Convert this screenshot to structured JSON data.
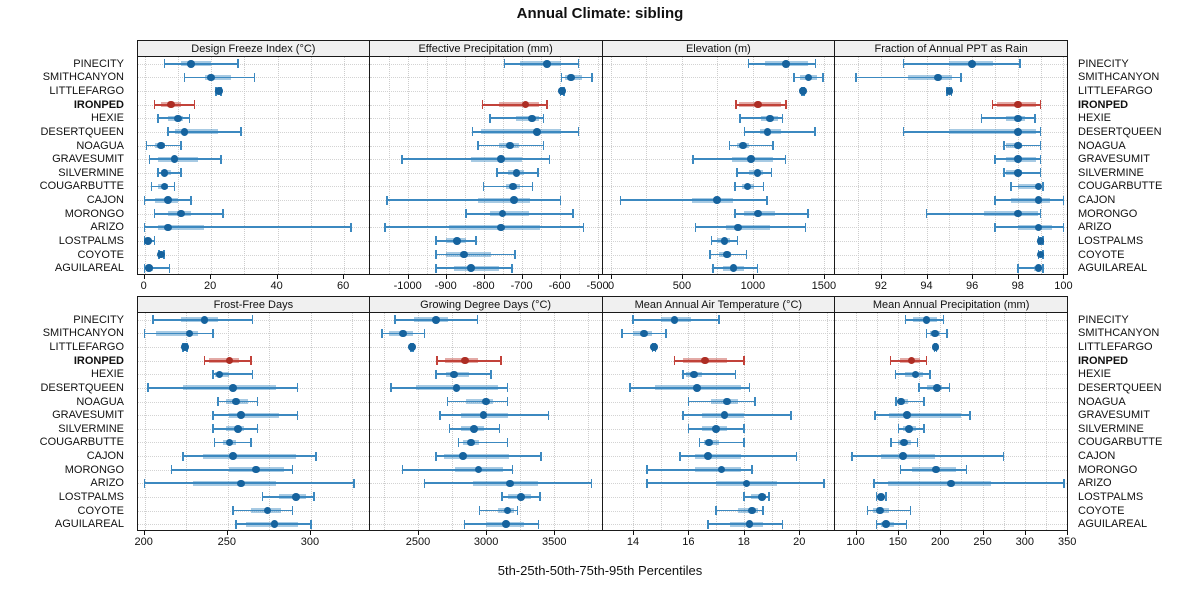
{
  "title": "Annual Climate: sibling",
  "caption": "5th-25th-50th-75th-95th Percentiles",
  "chart_data": {
    "type": "dotplot-percentile-whiskers",
    "layout": {
      "rows": 2,
      "cols": 4,
      "legend": "none",
      "grid": "dotted"
    },
    "percentiles": [
      5,
      25,
      50,
      75,
      95
    ],
    "highlight_site": "IRONPED",
    "colors": {
      "normal": "#3c89c0",
      "normal_dot": "#16639e",
      "highlight": "#c2423a",
      "highlight_dot": "#ad2d24",
      "strip_bg": "#f0f0f0",
      "grid": "#cccccc"
    },
    "sites": [
      "PINECITY",
      "SMITHCANYON",
      "LITTLEFARGO",
      "IRONPED",
      "HEXIE",
      "DESERTQUEEN",
      "NOAGUA",
      "GRAVESUMIT",
      "SILVERMINE",
      "COUGARBUTTE",
      "CAJON",
      "MORONGO",
      "ARIZO",
      "LOSTPALMS",
      "COYOTE",
      "AGUILAREAL"
    ],
    "panels": [
      {
        "title": "Design Freeze Index (°C)",
        "xlim": [
          -2,
          68
        ],
        "ticks": [
          0,
          20,
          40,
          60
        ],
        "values": [
          [
            6,
            11,
            14,
            20,
            28
          ],
          [
            12,
            18,
            20,
            26,
            33
          ],
          [
            21.5,
            22,
            22.3,
            22.7,
            23
          ],
          [
            3,
            5,
            8,
            11,
            15
          ],
          [
            4,
            7,
            10,
            11.5,
            13.5
          ],
          [
            7,
            9,
            12,
            22,
            29
          ],
          [
            0.5,
            3,
            5,
            6,
            11
          ],
          [
            1.5,
            4,
            9,
            16,
            23
          ],
          [
            4,
            5,
            6,
            8,
            11
          ],
          [
            2,
            4,
            6,
            7,
            9
          ],
          [
            0,
            3,
            7,
            10,
            14
          ],
          [
            3,
            7,
            11,
            14,
            23.5
          ],
          [
            0,
            4,
            7,
            18,
            62
          ],
          [
            0,
            0.3,
            1,
            2,
            3
          ],
          [
            4.3,
            4.7,
            5,
            5.4,
            5.8
          ],
          [
            0,
            0.5,
            1.3,
            2.5,
            7.5
          ]
        ]
      },
      {
        "title": "Effective Precipitation (mm)",
        "xlim": [
          -1100,
          -487
        ],
        "ticks": [
          -1000,
          -900,
          -800,
          -700,
          -600,
          -500
        ],
        "values": [
          [
            -745,
            -705,
            -633,
            -595,
            -550
          ],
          [
            -595,
            -585,
            -570,
            -540,
            -515
          ],
          [
            -597,
            -595,
            -593,
            -591,
            -589
          ],
          [
            -803,
            -760,
            -690,
            -655,
            -633
          ],
          [
            -783,
            -716,
            -672,
            -655,
            -642
          ],
          [
            -830,
            -806,
            -660,
            -595,
            -550
          ],
          [
            -815,
            -760,
            -730,
            -707,
            -642
          ],
          [
            -1015,
            -833,
            -755,
            -700,
            -626
          ],
          [
            -765,
            -737,
            -713,
            -694,
            -657
          ],
          [
            -800,
            -742,
            -722,
            -703,
            -672
          ],
          [
            -1055,
            -815,
            -720,
            -677,
            -598
          ],
          [
            -846,
            -783,
            -750,
            -680,
            -565
          ],
          [
            -1060,
            -890,
            -755,
            -652,
            -537
          ],
          [
            -926,
            -898,
            -870,
            -846,
            -820
          ],
          [
            -925,
            -898,
            -852,
            -780,
            -718
          ],
          [
            -925,
            -877,
            -833,
            -760,
            -725
          ]
        ]
      },
      {
        "title": "Elevation (m)",
        "xlim": [
          -60,
          1580
        ],
        "ticks": [
          0,
          500,
          1000,
          1500
        ],
        "values": [
          [
            970,
            1085,
            1233,
            1390,
            1440
          ],
          [
            1290,
            1335,
            1392,
            1450,
            1495
          ],
          [
            1345,
            1349,
            1352,
            1356,
            1360
          ],
          [
            880,
            902,
            1035,
            1199,
            1233
          ],
          [
            910,
            1060,
            1120,
            1175,
            1210
          ],
          [
            940,
            1050,
            1103,
            1199,
            1438
          ],
          [
            835,
            890,
            929,
            970,
            1140
          ],
          [
            578,
            856,
            986,
            1142,
            1228
          ],
          [
            886,
            970,
            1032,
            1073,
            1130
          ],
          [
            874,
            925,
            963,
            1005,
            1073
          ],
          [
            68,
            571,
            747,
            863,
            1100
          ],
          [
            874,
            936,
            1034,
            1153,
            1388
          ],
          [
            594,
            810,
            895,
            1119,
            1370
          ],
          [
            708,
            749,
            799,
            840,
            890
          ],
          [
            696,
            758,
            817,
            845,
            954
          ],
          [
            719,
            788,
            863,
            936,
            1032
          ]
        ]
      },
      {
        "title": "Fraction of Annual PPT as Rain",
        "xlim": [
          90,
          100.2
        ],
        "ticks": [
          92,
          94,
          96,
          98,
          100
        ],
        "values": [
          [
            93,
            95,
            96,
            96.9,
            98.1
          ],
          [
            90.9,
            93.2,
            94.5,
            95.1,
            95.5
          ],
          [
            94.9,
            94.95,
            95,
            95.05,
            95.1
          ],
          [
            96.9,
            97.1,
            98,
            98.8,
            99
          ],
          [
            96.4,
            97.5,
            98,
            98.3,
            98.75
          ],
          [
            93,
            95,
            98,
            98.8,
            99
          ],
          [
            97.4,
            97.5,
            98,
            98.2,
            99
          ],
          [
            97,
            97.5,
            98,
            98.8,
            99
          ],
          [
            97.4,
            97.5,
            98,
            98.2,
            99
          ],
          [
            97.7,
            98,
            98.9,
            99,
            99.1
          ],
          [
            97,
            97.7,
            98.9,
            99.4,
            100
          ],
          [
            94,
            96.5,
            98,
            98.9,
            99
          ],
          [
            97,
            98,
            98.9,
            99.5,
            100
          ],
          [
            98.9,
            98.95,
            99,
            99.05,
            99.1
          ],
          [
            98.9,
            98.95,
            99,
            99.05,
            99.1
          ],
          [
            98,
            98.7,
            98.9,
            99,
            99.1
          ]
        ]
      },
      {
        "title": "Frost-Free Days",
        "xlim": [
          196,
          336
        ],
        "ticks": [
          200,
          250,
          300
        ],
        "values": [
          [
            205,
            222,
            236,
            244,
            265
          ],
          [
            200,
            207,
            227,
            232,
            241
          ],
          [
            223,
            223.7,
            224.3,
            225,
            225.6
          ],
          [
            236,
            239,
            251,
            257,
            264
          ],
          [
            241,
            242.5,
            245,
            251,
            265
          ],
          [
            202,
            223,
            253,
            279,
            292
          ],
          [
            244,
            249,
            255,
            262,
            268
          ],
          [
            241,
            251,
            258,
            281,
            292
          ],
          [
            241,
            249,
            256,
            260,
            268
          ],
          [
            242,
            247,
            251,
            255,
            264
          ],
          [
            223,
            235,
            253,
            291,
            303
          ],
          [
            216,
            251,
            267,
            284,
            289
          ],
          [
            200,
            229,
            258,
            279,
            326
          ],
          [
            271,
            281,
            291,
            297,
            302
          ],
          [
            253,
            264,
            274,
            282,
            289
          ],
          [
            255,
            261,
            278,
            292,
            300
          ]
        ]
      },
      {
        "title": "Growing Degree Days (°C)",
        "xlim": [
          2146,
          3854
        ],
        "ticks": [
          2500,
          3000,
          3500
        ],
        "values": [
          [
            2330,
            2473,
            2632,
            2718,
            2938
          ],
          [
            2236,
            2290,
            2392,
            2460,
            2546
          ],
          [
            2448,
            2452,
            2456,
            2460,
            2464
          ],
          [
            2640,
            2695,
            2847,
            2938,
            3110
          ],
          [
            2632,
            2705,
            2766,
            2877,
            3035
          ],
          [
            2302,
            2485,
            2784,
            3084,
            3158
          ],
          [
            2718,
            2852,
            2999,
            3048,
            3158
          ],
          [
            2661,
            2815,
            2982,
            3158,
            3458
          ],
          [
            2730,
            2815,
            2913,
            2987,
            3097
          ],
          [
            2796,
            2828,
            2889,
            2950,
            3158
          ],
          [
            2632,
            2693,
            2832,
            3170,
            3402
          ],
          [
            2388,
            2771,
            2945,
            3121,
            3194
          ],
          [
            2546,
            2901,
            3177,
            3378,
            3774
          ],
          [
            3116,
            3158,
            3255,
            3329,
            3395
          ],
          [
            2950,
            3084,
            3158,
            3207,
            3231
          ],
          [
            2840,
            2999,
            3145,
            3280,
            3385
          ]
        ]
      },
      {
        "title": "Mean Annual Air Temperature (°C)",
        "xlim": [
          12.9,
          21.3
        ],
        "ticks": [
          14,
          16,
          18,
          20
        ],
        "values": [
          [
            14,
            15,
            15.5,
            16.1,
            17.1
          ],
          [
            13.6,
            14,
            14.4,
            14.7,
            15.2
          ],
          [
            14.7,
            14.73,
            14.76,
            14.79,
            14.82
          ],
          [
            15.5,
            15.8,
            16.6,
            17.4,
            18
          ],
          [
            15.8,
            15.9,
            16.2,
            16.5,
            17.7
          ],
          [
            13.9,
            14.8,
            16.3,
            17.9,
            18.2
          ],
          [
            16,
            16.8,
            17.4,
            17.8,
            18.4
          ],
          [
            15.8,
            16.5,
            17.3,
            18,
            19.7
          ],
          [
            16,
            16.5,
            17,
            17.4,
            18
          ],
          [
            16.4,
            16.55,
            16.75,
            17.1,
            18
          ],
          [
            15.7,
            16.25,
            16.7,
            17.9,
            19.9
          ],
          [
            14.5,
            16.25,
            17.2,
            17.9,
            18.3
          ],
          [
            14.5,
            17,
            18.1,
            19.2,
            20.9
          ],
          [
            18,
            18.25,
            18.65,
            18.8,
            18.9
          ],
          [
            17,
            17.8,
            18.3,
            18.5,
            18.7
          ],
          [
            16.7,
            17.5,
            18.2,
            18.7,
            19.4
          ]
        ]
      },
      {
        "title": "Mean Annual Precipitation (mm)",
        "xlim": [
          76,
          351
        ],
        "ticks": [
          100,
          150,
          200,
          250,
          300,
          350
        ],
        "values": [
          [
            159,
            168,
            184,
            196,
            204
          ],
          [
            184,
            188,
            194,
            200,
            208
          ],
          [
            193,
            193.7,
            194.3,
            195,
            195.6
          ],
          [
            141,
            152,
            166,
            176,
            184
          ],
          [
            147,
            158,
            171,
            180,
            188
          ],
          [
            175,
            184,
            196,
            202,
            211
          ],
          [
            148,
            150,
            154,
            162,
            181
          ],
          [
            123,
            140,
            161,
            225,
            235
          ],
          [
            151,
            156,
            163,
            172,
            181
          ],
          [
            142,
            150,
            157,
            165,
            173
          ],
          [
            96,
            130,
            156,
            194,
            275
          ],
          [
            153,
            167,
            195,
            219,
            231
          ],
          [
            122,
            138,
            213,
            260,
            346
          ],
          [
            125,
            127,
            130,
            133,
            136
          ],
          [
            114,
            121,
            129,
            139,
            165
          ],
          [
            125,
            130,
            136,
            145,
            160
          ]
        ]
      }
    ]
  }
}
